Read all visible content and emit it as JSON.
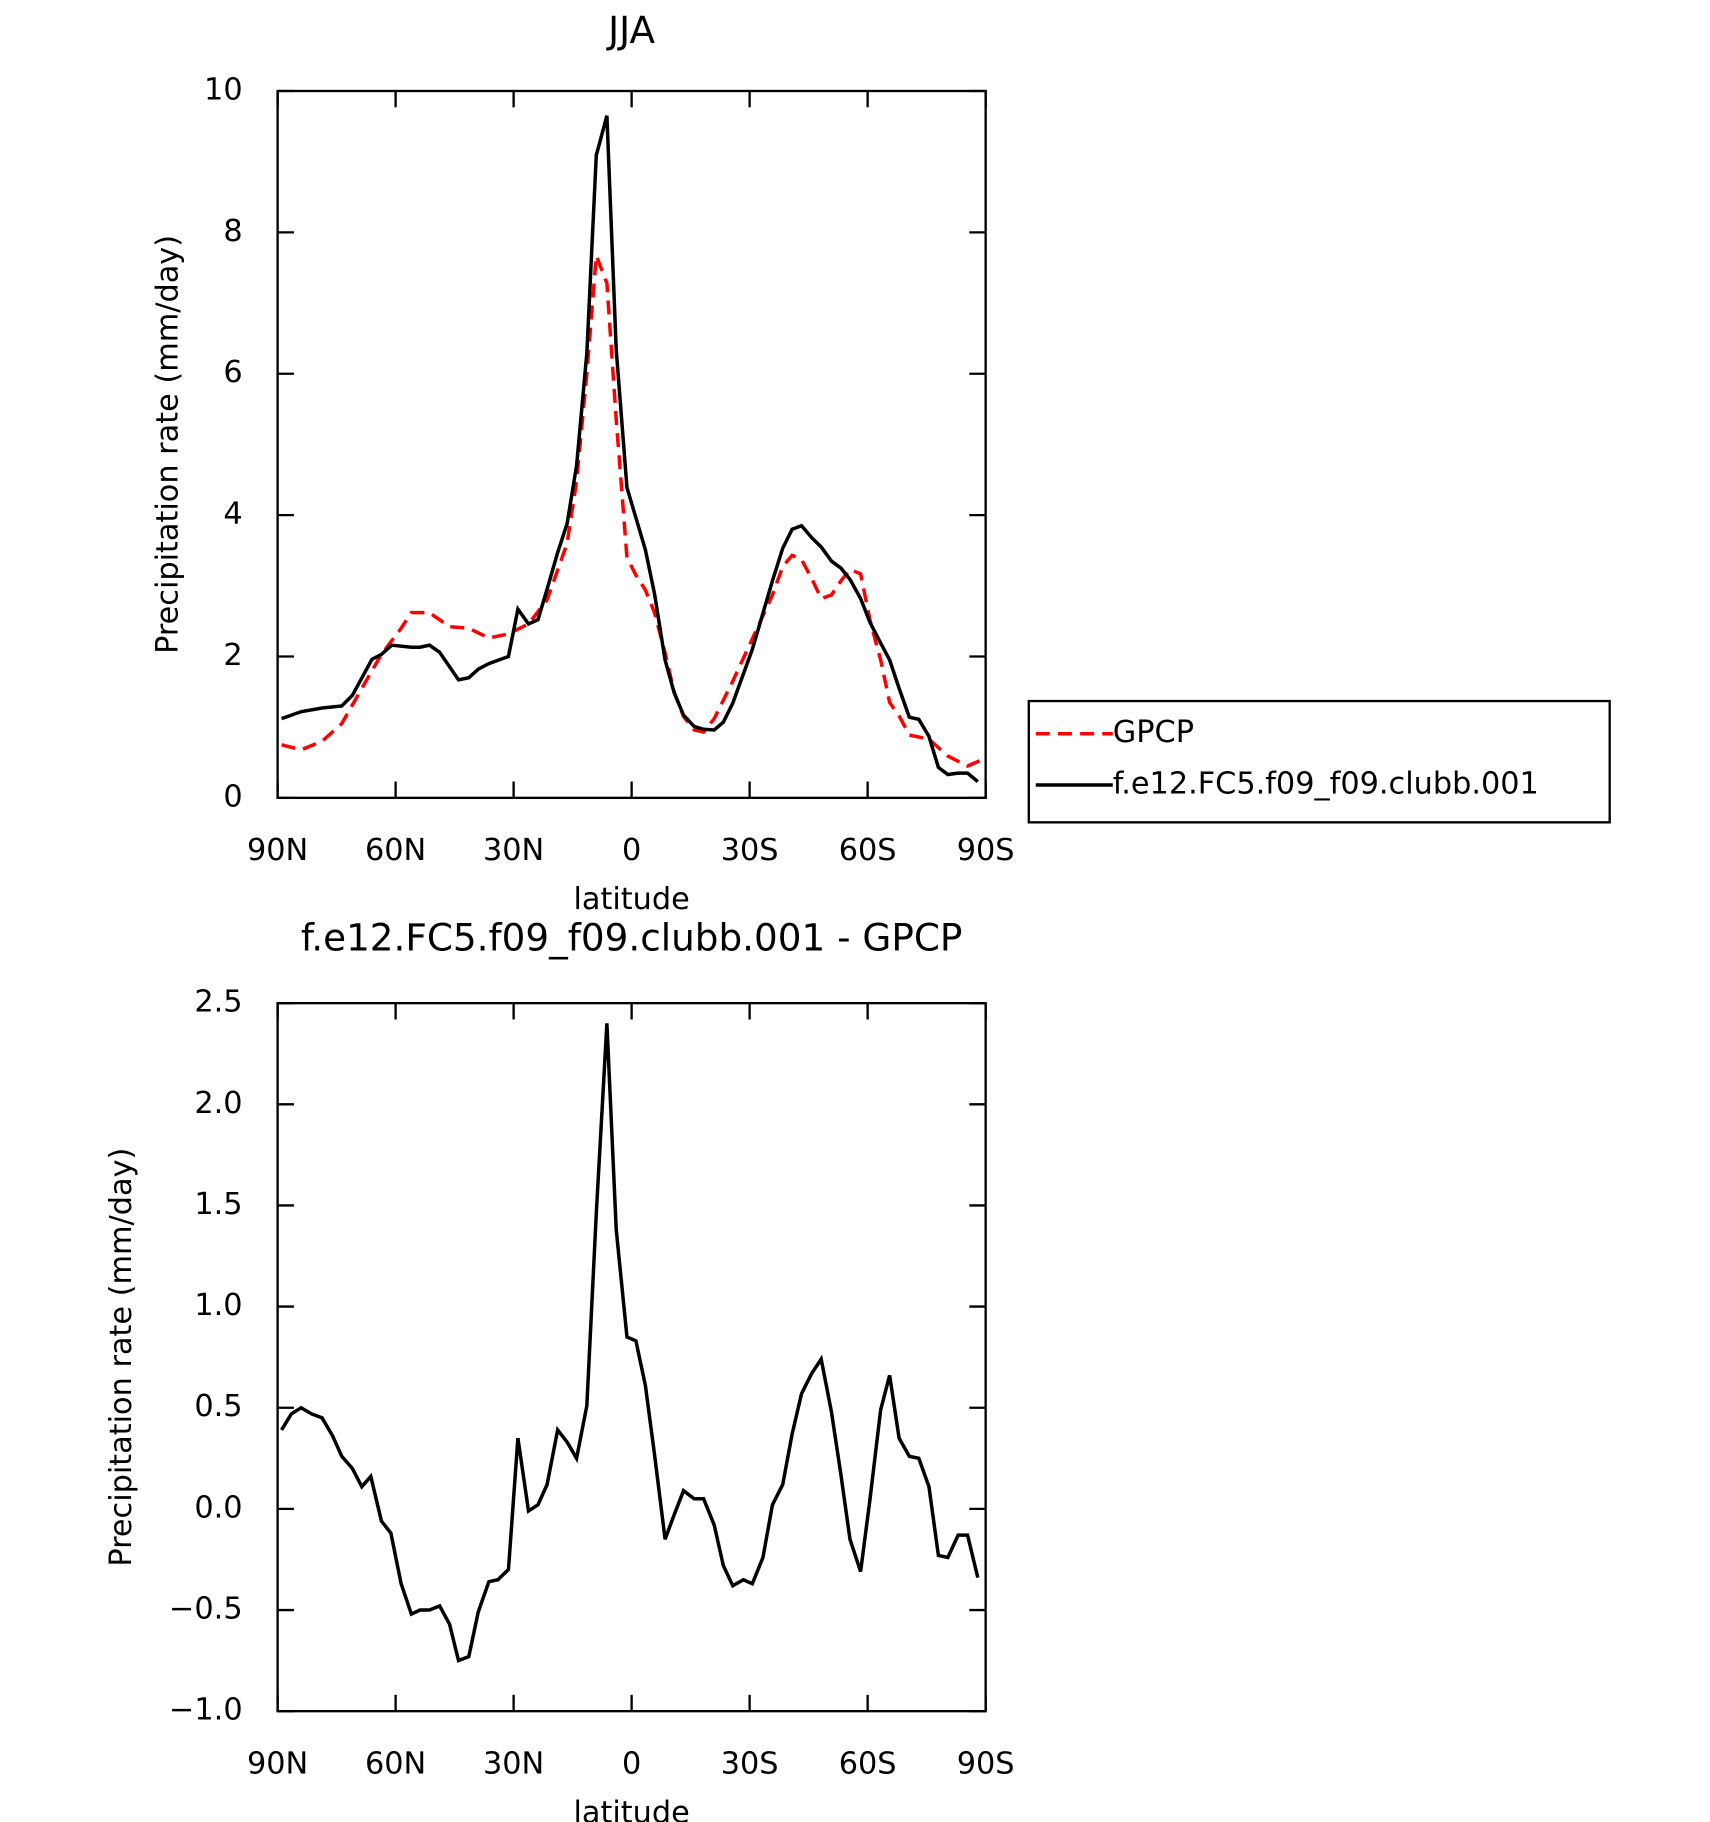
{
  "chart_data": [
    {
      "type": "line",
      "title": "JJA",
      "xlabel": "latitude",
      "ylabel": "Precipitation rate (mm/day)",
      "xlim": [
        90,
        -90
      ],
      "xticks": [
        {
          "value": 90,
          "label": "90N"
        },
        {
          "value": 60,
          "label": "60N"
        },
        {
          "value": 30,
          "label": "30N"
        },
        0,
        {
          "value": -30,
          "label": "30S"
        },
        {
          "value": -60,
          "label": "60S"
        },
        {
          "value": -90,
          "label": "90S"
        }
      ],
      "ylim": [
        0,
        10
      ],
      "yticks": [
        0,
        2,
        4,
        6,
        8,
        10
      ],
      "legend": "right",
      "series": [
        {
          "name": "GPCP",
          "color": "#ff0000",
          "dashed": true,
          "x": [
            89,
            84,
            78.7,
            73.7,
            68.6,
            63.6,
            58.6,
            56,
            51.4,
            46.3,
            41.4,
            36.3,
            31.3,
            26.2,
            21.5,
            16.4,
            14,
            11.4,
            9,
            6.3,
            3.9,
            1.2,
            -1.1,
            -3.5,
            -5.8,
            -8.5,
            -10.8,
            -13.2,
            -15.9,
            -18.3,
            -21,
            -25.7,
            -30.7,
            -35.8,
            -38.4,
            -40.8,
            -43.2,
            -45.8,
            -48.2,
            -50.8,
            -53.2,
            -55.5,
            -58.2,
            -60.6,
            -63.3,
            -65.6,
            -68,
            -70.6,
            -75.6,
            -80.4,
            -85.4,
            -90
          ],
          "values": [
            0.75,
            0.68,
            0.8,
            1.05,
            1.55,
            2.03,
            2.4,
            2.62,
            2.62,
            2.42,
            2.4,
            2.26,
            2.32,
            2.46,
            2.8,
            3.6,
            4.48,
            6.0,
            7.67,
            7.28,
            5.35,
            3.4,
            3.15,
            2.94,
            2.62,
            2.05,
            1.5,
            1.15,
            0.96,
            0.93,
            1.12,
            1.65,
            2.25,
            2.87,
            3.27,
            3.43,
            3.37,
            3.1,
            2.82,
            2.87,
            3.07,
            3.23,
            3.17,
            2.51,
            1.95,
            1.35,
            1.16,
            0.89,
            0.83,
            0.59,
            0.45,
            0.56
          ]
        },
        {
          "name": "f.e12.FC5.f09_f09.clubb.001",
          "color": "#000000",
          "dashed": false,
          "x": [
            89,
            84,
            78.7,
            73.7,
            71,
            66,
            63.6,
            61,
            56,
            53.8,
            51.4,
            48.8,
            44,
            41.4,
            39,
            36.3,
            31.3,
            28.9,
            26.2,
            23.8,
            21.5,
            18.8,
            16.4,
            14,
            11.4,
            9,
            6.3,
            3.9,
            1.2,
            -1.1,
            -3.5,
            -5.8,
            -8.5,
            -10.8,
            -13.2,
            -15.9,
            -18.3,
            -21,
            -23.3,
            -25.7,
            -30.7,
            -35.8,
            -38.4,
            -40.8,
            -43.2,
            -45.8,
            -48.2,
            -50.8,
            -53.2,
            -55.5,
            -58.2,
            -60.6,
            -63.3,
            -65.6,
            -68,
            -70.6,
            -73,
            -75.6,
            -78,
            -80.4,
            -83,
            -85.4,
            -88
          ],
          "values": [
            1.12,
            1.22,
            1.27,
            1.3,
            1.45,
            1.96,
            2.03,
            2.16,
            2.13,
            2.13,
            2.16,
            2.06,
            1.67,
            1.7,
            1.82,
            1.9,
            2.0,
            2.67,
            2.46,
            2.52,
            2.95,
            3.47,
            3.88,
            4.7,
            6.29,
            9.09,
            9.65,
            6.34,
            4.39,
            3.96,
            3.51,
            2.89,
            1.95,
            1.49,
            1.17,
            1.01,
            0.97,
            0.96,
            1.07,
            1.34,
            2.1,
            3.07,
            3.53,
            3.8,
            3.85,
            3.68,
            3.55,
            3.35,
            3.25,
            3.09,
            2.82,
            2.48,
            2.19,
            1.95,
            1.55,
            1.14,
            1.11,
            0.87,
            0.43,
            0.33,
            0.35,
            0.35,
            0.23
          ]
        }
      ]
    },
    {
      "type": "line",
      "title": "f.e12.FC5.f09_f09.clubb.001 - GPCP",
      "xlabel": "latitude",
      "ylabel": "Precipitation rate (mm/day)",
      "xlim": [
        90,
        -90
      ],
      "xticks": [
        {
          "value": 90,
          "label": "90N"
        },
        {
          "value": 60,
          "label": "60N"
        },
        {
          "value": 30,
          "label": "30N"
        },
        0,
        {
          "value": -30,
          "label": "30S"
        },
        {
          "value": -60,
          "label": "60S"
        },
        {
          "value": -90,
          "label": "90S"
        }
      ],
      "ylim": [
        -1,
        2.5
      ],
      "yticks": [
        {
          "value": -1,
          "label": "−1.0"
        },
        {
          "value": -0.5,
          "label": "−0.5"
        },
        {
          "value": 0,
          "label": "0.0"
        },
        0.5,
        {
          "value": 1,
          "label": "1.0"
        },
        1.5,
        {
          "value": 2,
          "label": "2.0"
        },
        2.5
      ],
      "series": [
        {
          "color": "#000000",
          "dashed": false,
          "x": [
            89,
            86.5,
            84,
            81.4,
            78.7,
            76,
            73.7,
            71,
            68.6,
            66.3,
            63.6,
            61.2,
            58.6,
            56,
            53.8,
            51.4,
            48.8,
            46.3,
            44,
            41.4,
            39,
            36.3,
            34,
            31.3,
            28.9,
            26.2,
            23.8,
            21.5,
            18.8,
            16.4,
            14,
            11.4,
            9,
            6.3,
            3.9,
            1.2,
            -1.1,
            -3.5,
            -5.8,
            -8.5,
            -10.8,
            -13.2,
            -15.9,
            -18.3,
            -21,
            -23.3,
            -25.7,
            -28.4,
            -30.7,
            -33.4,
            -35.8,
            -38.4,
            -40.8,
            -43.2,
            -45.8,
            -48.2,
            -50.8,
            -53.2,
            -55.5,
            -58.2,
            -60.6,
            -63.3,
            -65.6,
            -68,
            -70.6,
            -73,
            -75.6,
            -78,
            -80.4,
            -83,
            -85.4,
            -88
          ],
          "values": [
            0.39,
            0.47,
            0.5,
            0.47,
            0.45,
            0.36,
            0.26,
            0.2,
            0.11,
            0.16,
            -0.06,
            -0.12,
            -0.37,
            -0.52,
            -0.5,
            -0.5,
            -0.48,
            -0.57,
            -0.75,
            -0.73,
            -0.51,
            -0.36,
            -0.35,
            -0.3,
            0.35,
            -0.01,
            0.02,
            0.12,
            0.39,
            0.33,
            0.25,
            0.51,
            1.46,
            2.4,
            1.38,
            0.85,
            0.83,
            0.61,
            0.27,
            -0.15,
            -0.03,
            0.09,
            0.05,
            0.05,
            -0.08,
            -0.28,
            -0.38,
            -0.35,
            -0.37,
            -0.24,
            0.02,
            0.12,
            0.37,
            0.57,
            0.67,
            0.74,
            0.48,
            0.17,
            -0.15,
            -0.31,
            0.05,
            0.49,
            0.66,
            0.35,
            0.26,
            0.25,
            0.11,
            -0.23,
            -0.24,
            -0.13,
            -0.13,
            -0.34
          ]
        }
      ]
    }
  ]
}
